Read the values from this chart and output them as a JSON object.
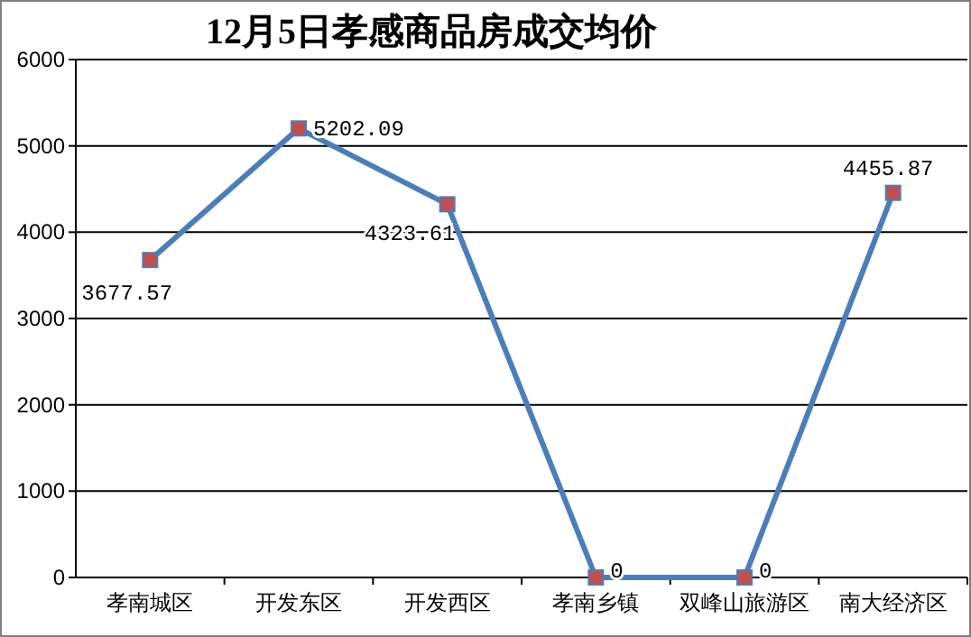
{
  "chart_data": {
    "type": "line",
    "title": "12月5日孝感商品房成交均价",
    "categories": [
      "孝南城区",
      "开发东区",
      "开发西区",
      "孝南乡镇",
      "双峰山旅游区",
      "南大经济区"
    ],
    "series": [
      {
        "color": "#4a7ebb",
        "values": [
          3677.57,
          5202.09,
          4323.61,
          0,
          0,
          4455.87
        ]
      }
    ],
    "ylim": [
      0,
      6000
    ],
    "yticks": [
      0,
      1000,
      2000,
      3000,
      4000,
      5000,
      6000
    ],
    "grid": "y",
    "marker": "square",
    "line_style": "solid",
    "data_labels": true
  }
}
